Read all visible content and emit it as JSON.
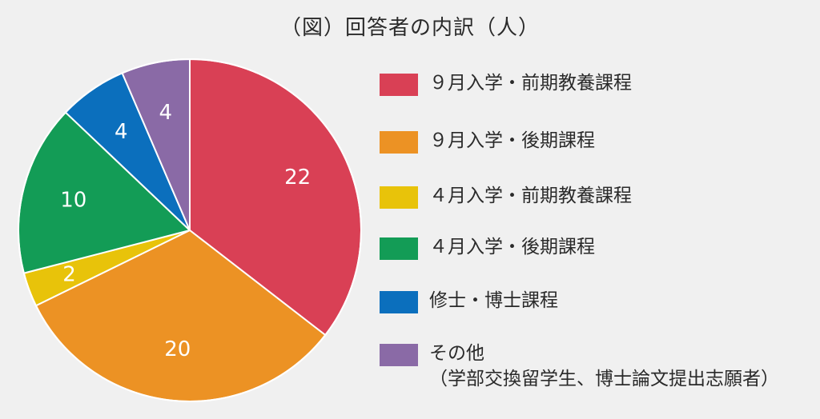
{
  "chart_data": {
    "type": "pie",
    "title": "（図）回答者の内訳（人）",
    "start_angle_deg": 0,
    "direction": "clockwise",
    "slices": [
      {
        "label": "９月入学・前期教養課程",
        "value": 22,
        "color": "#d94055"
      },
      {
        "label": "９月入学・後期課程",
        "value": 20,
        "color": "#ec9224"
      },
      {
        "label": "４月入学・前期教養課程",
        "value": 2,
        "color": "#e8c30a"
      },
      {
        "label": "４月入学・後期課程",
        "value": 10,
        "color": "#139c56"
      },
      {
        "label": "修士・博士課程",
        "value": 4,
        "color": "#0b6fbd"
      },
      {
        "label": "その他",
        "value": 4,
        "color": "#8a6aa6",
        "sublabel": "（学部交換留学生、博士論文提出志願者）"
      }
    ],
    "legend_position": "right"
  }
}
